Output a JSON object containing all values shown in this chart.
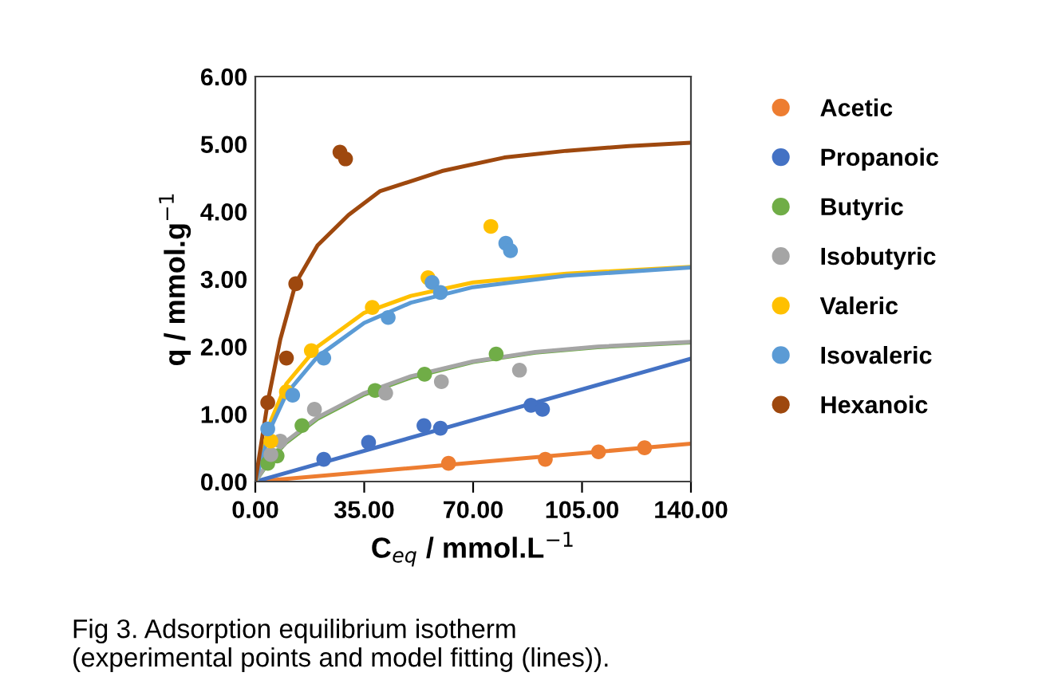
{
  "chart_data": {
    "type": "scatter",
    "xlabel": "C$_{eq}$ / mmol.L$^{−1}$",
    "ylabel": "q / mmol.g$^{−1}$",
    "xlim": [
      0,
      140
    ],
    "ylim": [
      0,
      6
    ],
    "xticks": [
      {
        "value": 0,
        "label": "0.00"
      },
      {
        "value": 35,
        "label": "35.00"
      },
      {
        "value": 70,
        "label": "70.00"
      },
      {
        "value": 105,
        "label": "105.00"
      },
      {
        "value": 140,
        "label": "140.00"
      }
    ],
    "yticks": [
      {
        "value": 0,
        "label": "0.00"
      },
      {
        "value": 1,
        "label": "1.00"
      },
      {
        "value": 2,
        "label": "2.00"
      },
      {
        "value": 3,
        "label": "3.00"
      },
      {
        "value": 4,
        "label": "4.00"
      },
      {
        "value": 5,
        "label": "5.00"
      },
      {
        "value": 6,
        "label": "6.00"
      }
    ],
    "grid": false,
    "legend": "right",
    "marker": "circle",
    "series": [
      {
        "name": "Acetic",
        "color": "#ed7d31",
        "x": [
          62.1,
          93.2,
          110.3,
          125.1
        ],
        "values": [
          0.27,
          0.33,
          0.44,
          0.5
        ]
      },
      {
        "name": "Propanoic",
        "color": "#4472c4",
        "x": [
          22,
          36.4,
          54.2,
          59.5,
          88.6,
          92.3
        ],
        "values": [
          0.33,
          0.58,
          0.83,
          0.79,
          1.13,
          1.07
        ]
      },
      {
        "name": "Butyric",
        "color": "#70ad47",
        "x": [
          4,
          7,
          15,
          38.5,
          54.4,
          77.4
        ],
        "values": [
          0.27,
          0.38,
          0.83,
          1.35,
          1.59,
          1.89
        ]
      },
      {
        "name": "Isobutyric",
        "color": "#a5a5a5",
        "x": [
          5,
          8,
          19,
          41.9,
          59.8,
          84.9
        ],
        "values": [
          0.4,
          0.6,
          1.07,
          1.31,
          1.48,
          1.65
        ]
      },
      {
        "name": "Valeric",
        "color": "#ffc000",
        "x": [
          5,
          10,
          18,
          37.6,
          55.5,
          75.7
        ],
        "values": [
          0.6,
          1.33,
          1.94,
          2.58,
          3.02,
          3.78
        ]
      },
      {
        "name": "Isovaleric",
        "color": "#5b9bd5",
        "x": [
          4,
          12,
          22,
          42.7,
          56.8,
          59.5,
          80.5,
          82
        ],
        "values": [
          0.78,
          1.28,
          1.83,
          2.43,
          2.95,
          2.8,
          3.53,
          3.42
        ]
      },
      {
        "name": "Hexanoic",
        "color": "#9e480e",
        "x": [
          4,
          10,
          13,
          27.2,
          29
        ],
        "values": [
          1.17,
          1.83,
          2.93,
          4.88,
          4.78
        ]
      },
      {
        "color": "#ed7d31",
        "type": "line",
        "marker": "none",
        "x": [
          0,
          70,
          140
        ],
        "values": [
          0,
          0.28,
          0.56
        ]
      },
      {
        "color": "#4472c4",
        "type": "line",
        "marker": "none",
        "x": [
          0,
          70,
          140
        ],
        "values": [
          0,
          0.91,
          1.82
        ]
      },
      {
        "color": "#70ad47",
        "type": "line",
        "marker": "none",
        "x": [
          0,
          5,
          10,
          20,
          35,
          50,
          70,
          90,
          110,
          140
        ],
        "values": [
          0,
          0.33,
          0.58,
          0.93,
          1.29,
          1.54,
          1.77,
          1.91,
          1.99,
          2.06
        ]
      },
      {
        "color": "#a5a5a5",
        "type": "line",
        "marker": "none",
        "x": [
          0,
          5,
          10,
          20,
          35,
          50,
          70,
          90,
          110,
          140
        ],
        "values": [
          0,
          0.35,
          0.6,
          0.95,
          1.31,
          1.56,
          1.78,
          1.92,
          2.0,
          2.07
        ]
      },
      {
        "color": "#ffc000",
        "type": "line",
        "marker": "none",
        "x": [
          0,
          5,
          10,
          20,
          35,
          50,
          70,
          100,
          140
        ],
        "values": [
          0,
          0.9,
          1.45,
          2.0,
          2.5,
          2.75,
          2.95,
          3.08,
          3.18
        ]
      },
      {
        "color": "#5b9bd5",
        "type": "line",
        "marker": "none",
        "x": [
          0,
          5,
          10,
          20,
          35,
          50,
          70,
          100,
          140
        ],
        "values": [
          0,
          0.8,
          1.3,
          1.85,
          2.35,
          2.65,
          2.88,
          3.05,
          3.17
        ]
      },
      {
        "color": "#9e480e",
        "type": "line",
        "marker": "none",
        "x": [
          0,
          4,
          8,
          13,
          20,
          30,
          40,
          60,
          80,
          100,
          120,
          140
        ],
        "values": [
          0,
          1.18,
          2.1,
          2.94,
          3.5,
          3.95,
          4.3,
          4.6,
          4.8,
          4.9,
          4.97,
          5.02
        ]
      }
    ],
    "annotations": [
      "Fig 3. Adsorption equilibrium isotherm\n(experimental points and model fitting (lines))."
    ]
  }
}
